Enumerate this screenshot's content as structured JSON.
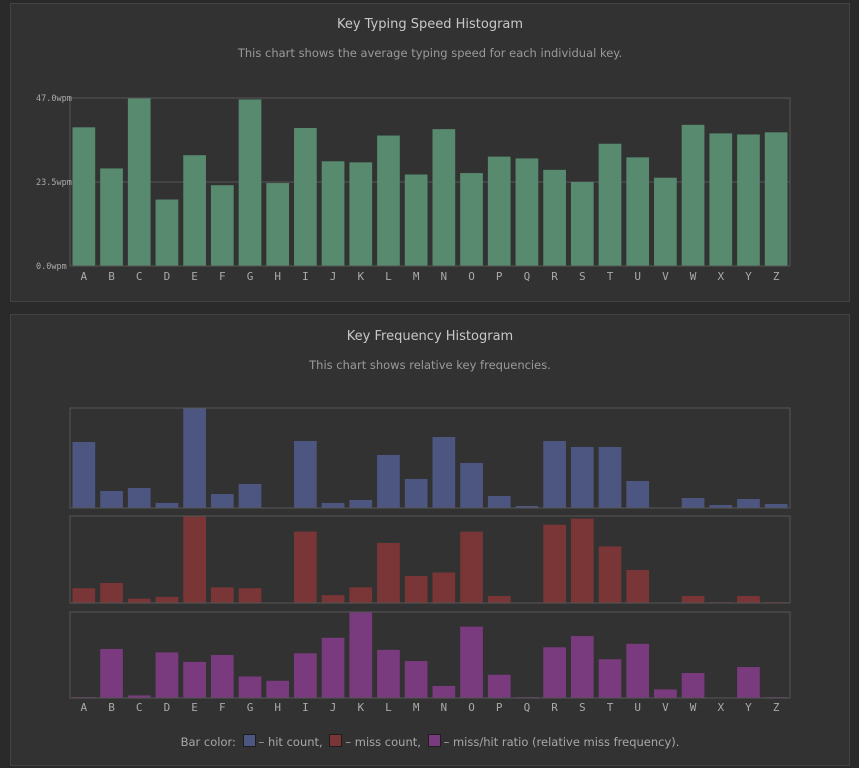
{
  "speed_chart": {
    "title": "Key Typing Speed Histogram",
    "subtitle": "This chart shows the average typing speed for each individual key."
  },
  "freq_chart": {
    "title": "Key Frequency Histogram",
    "subtitle": "This chart shows relative key frequencies.",
    "legend": {
      "prefix": "Bar color:",
      "hit": "– hit count,",
      "miss": "– miss count,",
      "ratio": "– miss/hit ratio (relative miss frequency)."
    }
  },
  "colors": {
    "speed_bar": "#578a6e",
    "hit_bar": "#4d5680",
    "miss_bar": "#7a3636",
    "ratio_bar": "#7a3a7e",
    "grid": "#555555",
    "frame": "#555555",
    "tick_text": "#aaaaaa"
  },
  "chart_data": [
    {
      "type": "bar",
      "title": "Key Typing Speed Histogram",
      "categories": [
        "A",
        "B",
        "C",
        "D",
        "E",
        "F",
        "G",
        "H",
        "I",
        "J",
        "K",
        "L",
        "M",
        "N",
        "O",
        "P",
        "Q",
        "R",
        "S",
        "T",
        "U",
        "V",
        "W",
        "X",
        "Y",
        "Z"
      ],
      "values": [
        38.8,
        27.3,
        47.0,
        18.6,
        31.0,
        22.6,
        46.6,
        23.2,
        38.6,
        29.3,
        29.0,
        36.5,
        25.6,
        38.3,
        26.0,
        30.6,
        30.1,
        26.9,
        23.5,
        34.2,
        30.4,
        24.7,
        39.5,
        37.1,
        36.8,
        37.4
      ],
      "ylim": [
        0,
        47.0
      ],
      "yticks": [
        "0.0wpm",
        "23.5wpm",
        "47.0wpm"
      ],
      "grid": true
    },
    {
      "type": "bar",
      "title": "Key Frequency Histogram",
      "categories": [
        "A",
        "B",
        "C",
        "D",
        "E",
        "F",
        "G",
        "H",
        "I",
        "J",
        "K",
        "L",
        "M",
        "N",
        "O",
        "P",
        "Q",
        "R",
        "S",
        "T",
        "U",
        "V",
        "W",
        "X",
        "Y",
        "Z"
      ],
      "series": [
        {
          "name": "hit count",
          "values": [
            0.66,
            0.17,
            0.2,
            0.05,
            1.0,
            0.14,
            0.24,
            0.0,
            0.67,
            0.05,
            0.08,
            0.53,
            0.29,
            0.71,
            0.45,
            0.12,
            0.02,
            0.67,
            0.61,
            0.61,
            0.27,
            0.0,
            0.1,
            0.03,
            0.09,
            0.04
          ]
        },
        {
          "name": "miss count",
          "values": [
            0.17,
            0.23,
            0.05,
            0.07,
            1.0,
            0.18,
            0.17,
            0.0,
            0.82,
            0.09,
            0.18,
            0.69,
            0.31,
            0.35,
            0.82,
            0.08,
            0.0,
            0.9,
            0.97,
            0.65,
            0.38,
            0.0,
            0.08,
            0.01,
            0.08,
            0.01
          ]
        },
        {
          "name": "miss/hit ratio",
          "values": [
            0.01,
            0.57,
            0.03,
            0.53,
            0.42,
            0.5,
            0.25,
            0.2,
            0.52,
            0.7,
            1.0,
            0.56,
            0.43,
            0.14,
            0.83,
            0.27,
            0.01,
            0.59,
            0.72,
            0.45,
            0.63,
            0.1,
            0.29,
            0.0,
            0.36,
            0.01
          ]
        }
      ]
    }
  ]
}
